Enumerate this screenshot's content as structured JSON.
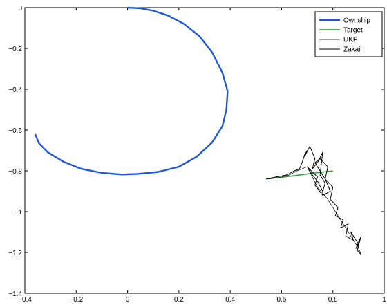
{
  "chart_data": {
    "type": "line",
    "title": "",
    "xlabel": "",
    "ylabel": "",
    "xlim": [
      -0.4,
      1.0
    ],
    "ylim": [
      -1.4,
      0.0
    ],
    "xticks": [
      -0.4,
      -0.2,
      0,
      0.2,
      0.4,
      0.6,
      0.8,
      1.0
    ],
    "xtick_labels": [
      "−0.4",
      "−0.2",
      "0",
      "0.2",
      "0.4",
      "0.6",
      "0.8",
      "1"
    ],
    "yticks": [
      0,
      -0.2,
      -0.4,
      -0.6,
      -0.8,
      -1.0,
      -1.2,
      -1.4
    ],
    "ytick_labels": [
      "0",
      "−0.2",
      "−0.4",
      "−0.6",
      "−0.8",
      "−1",
      "−1.2",
      "−1.4"
    ],
    "grid": false,
    "legend_position": "top-right",
    "series": [
      {
        "name": "Ownship",
        "color": "#1f57d6",
        "x": [
          0.0,
          0.05,
          0.1,
          0.16,
          0.22,
          0.28,
          0.33,
          0.37,
          0.39,
          0.385,
          0.37,
          0.33,
          0.27,
          0.2,
          0.12,
          0.04,
          -0.02,
          -0.1,
          -0.18,
          -0.25,
          -0.31,
          -0.345,
          -0.36
        ],
        "y": [
          0.0,
          -0.003,
          -0.015,
          -0.04,
          -0.08,
          -0.14,
          -0.22,
          -0.32,
          -0.41,
          -0.5,
          -0.58,
          -0.66,
          -0.73,
          -0.78,
          -0.805,
          -0.815,
          -0.818,
          -0.81,
          -0.79,
          -0.755,
          -0.71,
          -0.665,
          -0.62
        ]
      },
      {
        "name": "Target",
        "color": "#22a02a",
        "x": [
          0.54,
          0.6,
          0.66,
          0.72,
          0.76,
          0.8
        ],
        "y": [
          -0.84,
          -0.832,
          -0.822,
          -0.812,
          -0.806,
          -0.8
        ]
      },
      {
        "name": "UKF",
        "color": "#000000",
        "x": [
          0.55,
          0.6,
          0.63,
          0.66,
          0.7,
          0.72,
          0.74,
          0.76,
          0.78,
          0.8,
          0.82,
          0.84,
          0.86,
          0.88,
          0.9,
          0.91
        ],
        "y": [
          -0.84,
          -0.83,
          -0.82,
          -0.8,
          -0.78,
          -0.83,
          -0.88,
          -0.91,
          -0.94,
          -0.98,
          -1.02,
          -1.06,
          -1.1,
          -1.14,
          -1.18,
          -1.21
        ]
      },
      {
        "name": "Zakai",
        "color": "#000000",
        "x": [
          0.54,
          0.58,
          0.62,
          0.65,
          0.67,
          0.68,
          0.69,
          0.7,
          0.69,
          0.71,
          0.73,
          0.72,
          0.74,
          0.76,
          0.75,
          0.77,
          0.76,
          0.74,
          0.72,
          0.7,
          0.74,
          0.73,
          0.76,
          0.79,
          0.77,
          0.75,
          0.73,
          0.75,
          0.78,
          0.77,
          0.8,
          0.79,
          0.82,
          0.81,
          0.84,
          0.83,
          0.86,
          0.85,
          0.88,
          0.87,
          0.9,
          0.89,
          0.91,
          0.895,
          0.91
        ],
        "y": [
          -0.84,
          -0.83,
          -0.82,
          -0.8,
          -0.79,
          -0.76,
          -0.72,
          -0.7,
          -0.73,
          -0.68,
          -0.74,
          -0.79,
          -0.76,
          -0.71,
          -0.82,
          -0.86,
          -0.9,
          -0.85,
          -0.82,
          -0.78,
          -0.83,
          -0.87,
          -0.92,
          -0.9,
          -0.84,
          -0.8,
          -0.76,
          -0.74,
          -0.78,
          -0.84,
          -0.88,
          -0.94,
          -0.98,
          -1.02,
          -1.04,
          -1.08,
          -1.06,
          -1.12,
          -1.14,
          -1.1,
          -1.16,
          -1.18,
          -1.12,
          -1.19,
          -1.21
        ]
      }
    ]
  }
}
